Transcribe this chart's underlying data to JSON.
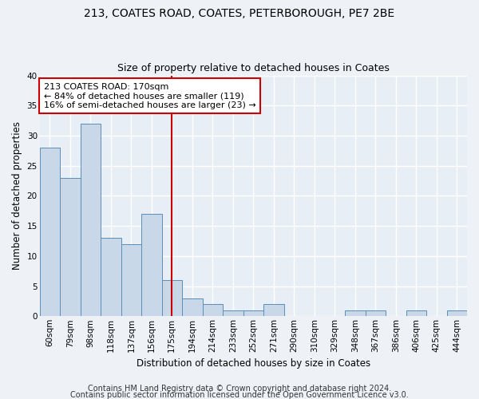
{
  "title1": "213, COATES ROAD, COATES, PETERBOROUGH, PE7 2BE",
  "title2": "Size of property relative to detached houses in Coates",
  "xlabel": "Distribution of detached houses by size in Coates",
  "ylabel": "Number of detached properties",
  "categories": [
    "60sqm",
    "79sqm",
    "98sqm",
    "118sqm",
    "137sqm",
    "156sqm",
    "175sqm",
    "194sqm",
    "214sqm",
    "233sqm",
    "252sqm",
    "271sqm",
    "290sqm",
    "310sqm",
    "329sqm",
    "348sqm",
    "367sqm",
    "386sqm",
    "406sqm",
    "425sqm",
    "444sqm"
  ],
  "values": [
    28,
    23,
    32,
    13,
    12,
    17,
    6,
    3,
    2,
    1,
    1,
    2,
    0,
    0,
    0,
    1,
    1,
    0,
    1,
    0,
    1
  ],
  "bar_color": "#c8d8e8",
  "bar_edgecolor": "#5b8db8",
  "vline_x": 6,
  "vline_color": "#cc0000",
  "annotation_text": "213 COATES ROAD: 170sqm\n← 84% of detached houses are smaller (119)\n16% of semi-detached houses are larger (23) →",
  "annotation_box_color": "#ffffff",
  "annotation_box_edgecolor": "#cc0000",
  "ylim": [
    0,
    40
  ],
  "yticks": [
    0,
    5,
    10,
    15,
    20,
    25,
    30,
    35,
    40
  ],
  "footer1": "Contains HM Land Registry data © Crown copyright and database right 2024.",
  "footer2": "Contains public sector information licensed under the Open Government Licence v3.0.",
  "background_color": "#eef2f7",
  "plot_background_color": "#e8eef5",
  "grid_color": "#ffffff",
  "title1_fontsize": 10,
  "title2_fontsize": 9,
  "xlabel_fontsize": 8.5,
  "ylabel_fontsize": 8.5,
  "tick_fontsize": 7.5,
  "footer_fontsize": 7,
  "annotation_fontsize": 8
}
